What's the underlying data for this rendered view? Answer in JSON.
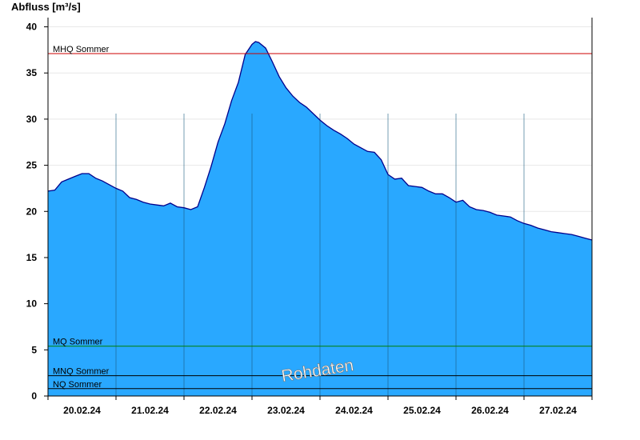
{
  "chart_data": {
    "type": "area",
    "ylabel": "Abfluss [m³/s]",
    "ylim": [
      0,
      41
    ],
    "yticks": [
      0,
      5,
      10,
      15,
      20,
      25,
      30,
      35,
      40
    ],
    "xlabels": [
      "20.02.24",
      "21.02.24",
      "22.02.24",
      "23.02.24",
      "24.02.24",
      "25.02.24",
      "26.02.24",
      "27.02.24"
    ],
    "xlim_days": [
      0,
      8
    ],
    "grid": true,
    "colors": {
      "fill": "#29a8ff",
      "line": "#00008b",
      "mhq": "#cc0000",
      "mq": "#008000",
      "low": "#000000"
    },
    "reference_lines": [
      {
        "label": "MHQ Sommer",
        "value": 37.1,
        "color": "#cc0000"
      },
      {
        "label": "MQ Sommer",
        "value": 5.4,
        "color": "#008000"
      },
      {
        "label": "MNQ Sommer",
        "value": 2.2,
        "color": "#000000"
      },
      {
        "label": "NQ Sommer",
        "value": 0.8,
        "color": "#000000"
      }
    ],
    "watermark": "Rohdaten",
    "series": [
      {
        "x": [
          0,
          0.1,
          0.2,
          0.3,
          0.4,
          0.5,
          0.6,
          0.7,
          0.8,
          0.9,
          1.0,
          1.1,
          1.2,
          1.3,
          1.4,
          1.5,
          1.6,
          1.7,
          1.8,
          1.9,
          2.0,
          2.1,
          2.2,
          2.3,
          2.4,
          2.5,
          2.6,
          2.7,
          2.8,
          2.9,
          3.0,
          3.05,
          3.1,
          3.2,
          3.3,
          3.4,
          3.5,
          3.6,
          3.7,
          3.8,
          3.9,
          4.0,
          4.1,
          4.2,
          4.3,
          4.4,
          4.5,
          4.6,
          4.7,
          4.8,
          4.9,
          5.0,
          5.1,
          5.2,
          5.3,
          5.4,
          5.5,
          5.6,
          5.7,
          5.8,
          5.9,
          6.0,
          6.1,
          6.2,
          6.3,
          6.4,
          6.5,
          6.6,
          6.7,
          6.8,
          6.9,
          7.0,
          7.1,
          7.2,
          7.3,
          7.4,
          7.5,
          7.6,
          7.7,
          7.8,
          7.9,
          8.0
        ],
        "y": [
          22.2,
          22.3,
          23.2,
          23.5,
          23.8,
          24.1,
          24.1,
          23.6,
          23.3,
          22.9,
          22.5,
          22.2,
          21.5,
          21.3,
          21.0,
          20.8,
          20.7,
          20.6,
          20.9,
          20.5,
          20.4,
          20.2,
          20.5,
          22.6,
          24.9,
          27.5,
          29.5,
          32.0,
          34.0,
          37.0,
          38.1,
          38.4,
          38.3,
          37.7,
          36.2,
          34.6,
          33.4,
          32.5,
          31.8,
          31.3,
          30.6,
          29.9,
          29.3,
          28.8,
          28.4,
          27.9,
          27.3,
          26.9,
          26.5,
          26.4,
          25.6,
          24.0,
          23.5,
          23.6,
          22.8,
          22.7,
          22.6,
          22.2,
          21.9,
          21.9,
          21.5,
          21.0,
          21.2,
          20.5,
          20.2,
          20.1,
          19.9,
          19.6,
          19.5,
          19.4,
          19.0,
          18.7,
          18.5,
          18.2,
          18.0,
          17.8,
          17.7,
          17.6,
          17.5,
          17.3,
          17.1,
          16.9
        ]
      }
    ]
  }
}
